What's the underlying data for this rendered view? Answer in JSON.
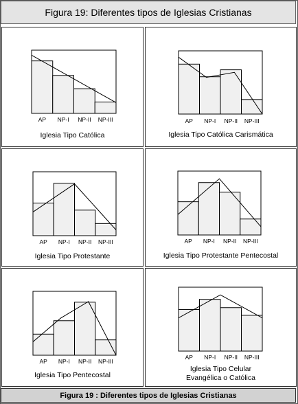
{
  "header": {
    "title": "Figura 19: Diferentes tipos de Iglesias Cristianas"
  },
  "footer": {
    "caption": "Figura 19 : Diferentes tipos de Iglesias Cristianas"
  },
  "chart_data": [
    {
      "type": "bar",
      "categories": [
        "AP",
        "NP-I",
        "NP-II",
        "NP-III"
      ],
      "values": [
        83,
        60,
        39,
        18
      ],
      "trend": [
        92,
        17
      ],
      "ylim": [
        0,
        100
      ],
      "caption_lines": [
        "Iglesia Tipo Católica"
      ]
    },
    {
      "type": "bar",
      "categories": [
        "AP",
        "NP-I",
        "NP-II",
        "NP-III"
      ],
      "values": [
        79,
        59,
        70,
        23
      ],
      "trend": [
        90,
        58,
        66,
        0
      ],
      "ylim": [
        0,
        100
      ],
      "caption_lines": [
        "Iglesia Tipo Católica Carismática"
      ]
    },
    {
      "type": "bar",
      "categories": [
        "AP",
        "NP-I",
        "NP-II",
        "NP-III"
      ],
      "values": [
        51,
        82,
        40,
        19
      ],
      "trend": [
        37,
        81,
        9
      ],
      "ylim": [
        0,
        100
      ],
      "caption_lines": [
        "Iglesia Tipo Protestante"
      ]
    },
    {
      "type": "bar",
      "categories": [
        "AP",
        "NP-I",
        "NP-II",
        "NP-III"
      ],
      "values": [
        52,
        82,
        67,
        25
      ],
      "trend": [
        32,
        88,
        13
      ],
      "ylim": [
        0,
        100
      ],
      "caption_lines": [
        "Iglesia Tipo Protestante Pentecostal"
      ]
    },
    {
      "type": "bar",
      "categories": [
        "AP",
        "NP-I",
        "NP-II",
        "NP-III"
      ],
      "values": [
        33,
        54,
        83,
        24
      ],
      "trend": [
        21,
        58,
        84,
        0
      ],
      "ylim": [
        0,
        100
      ],
      "caption_lines": [
        "Iglesia Tipo Pentecostal"
      ]
    },
    {
      "type": "bar",
      "categories": [
        "AP",
        "NP-I",
        "NP-II",
        "NP-III"
      ],
      "values": [
        65,
        81,
        68,
        56
      ],
      "trend": [
        52,
        88,
        52
      ],
      "ylim": [
        0,
        100
      ],
      "caption_lines": [
        "Iglesia Tipo Celular",
        "Evangélica o Católica"
      ]
    }
  ]
}
